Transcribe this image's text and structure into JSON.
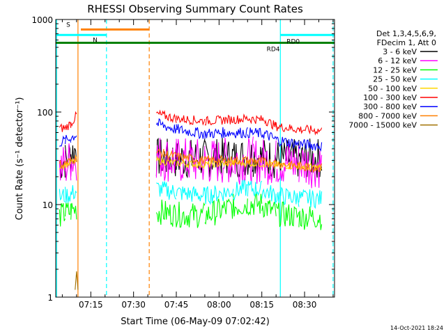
{
  "chart_data": {
    "type": "line",
    "title": "RHESSI Observing Summary Count Rates",
    "xlabel": "Start Time (06-May-09 07:02:42)",
    "ylabel": "Count Rate (s⁻¹ detector⁻¹)",
    "y_scale": "log",
    "ylim": [
      1,
      1000
    ],
    "xlim_minutes_after_0700": [
      2.7,
      100.5
    ],
    "x_ticks": [
      {
        "minute": 15,
        "label": "07:15"
      },
      {
        "minute": 30,
        "label": "07:30"
      },
      {
        "minute": 45,
        "label": "07:45"
      },
      {
        "minute": 60,
        "label": "08:00"
      },
      {
        "minute": 75,
        "label": "08:15"
      },
      {
        "minute": 90,
        "label": "08:30"
      }
    ],
    "y_ticks": [
      {
        "value": 1,
        "label": "1"
      },
      {
        "value": 10,
        "label": "10"
      },
      {
        "value": 100,
        "label": "100"
      },
      {
        "value": 1000,
        "label": "1000"
      }
    ],
    "legend_header": [
      "Det 1,3,4,5,6,9,",
      "FDecim 1, Att 0"
    ],
    "legend_placement": "right",
    "series": [
      {
        "name": "3 - 6 keV",
        "color": "#000000",
        "points": [
          [
            4,
            28
          ],
          [
            6,
            30
          ],
          [
            8,
            35
          ],
          [
            10,
            40
          ],
          [
            38,
            32
          ],
          [
            45,
            31
          ],
          [
            55,
            32
          ],
          [
            65,
            32
          ],
          [
            72,
            33
          ],
          [
            80,
            31
          ],
          [
            88,
            31
          ],
          [
            96,
            32
          ]
        ]
      },
      {
        "name": "6 - 12 keV",
        "color": "#ff00ff",
        "points": [
          [
            4,
            25
          ],
          [
            6,
            26
          ],
          [
            8,
            30
          ],
          [
            10,
            32
          ],
          [
            38,
            33
          ],
          [
            45,
            30
          ],
          [
            55,
            29
          ],
          [
            65,
            30
          ],
          [
            72,
            30
          ],
          [
            80,
            29
          ],
          [
            88,
            28
          ],
          [
            96,
            27
          ]
        ]
      },
      {
        "name": "12 - 25 keV",
        "color": "#00ff00",
        "points": [
          [
            4,
            7.5
          ],
          [
            6,
            8
          ],
          [
            8,
            8.5
          ],
          [
            10,
            9
          ],
          [
            38,
            8.5
          ],
          [
            45,
            7.8
          ],
          [
            55,
            7.6
          ],
          [
            65,
            9.5
          ],
          [
            70,
            10.3
          ],
          [
            75,
            10
          ],
          [
            80,
            8
          ],
          [
            88,
            7.4
          ],
          [
            96,
            7.3
          ]
        ]
      },
      {
        "name": "25 - 50 keV",
        "color": "#00ffff",
        "points": [
          [
            4,
            12
          ],
          [
            6,
            12.5
          ],
          [
            8,
            13
          ],
          [
            10,
            14
          ],
          [
            38,
            15
          ],
          [
            45,
            13.5
          ],
          [
            55,
            12.5
          ],
          [
            65,
            14
          ],
          [
            70,
            15
          ],
          [
            75,
            14.5
          ],
          [
            80,
            12.5
          ],
          [
            88,
            11.8
          ],
          [
            96,
            11.5
          ]
        ]
      },
      {
        "name": "50 - 100 keV",
        "color": "#ffd700",
        "points": [
          [
            4,
            26
          ],
          [
            6,
            27
          ],
          [
            8,
            28
          ],
          [
            10,
            30
          ],
          [
            38,
            30
          ],
          [
            45,
            28
          ],
          [
            55,
            27
          ],
          [
            65,
            28
          ],
          [
            72,
            28
          ],
          [
            80,
            27
          ],
          [
            88,
            26
          ],
          [
            96,
            25
          ]
        ]
      },
      {
        "name": "100 - 300 keV",
        "color": "#ff0000",
        "points": [
          [
            4,
            66
          ],
          [
            6,
            68
          ],
          [
            8,
            75
          ],
          [
            10,
            92
          ],
          [
            38,
            95
          ],
          [
            45,
            85
          ],
          [
            55,
            80
          ],
          [
            62,
            82
          ],
          [
            70,
            85
          ],
          [
            76,
            82
          ],
          [
            80,
            70
          ],
          [
            88,
            65
          ],
          [
            96,
            63
          ]
        ]
      },
      {
        "name": "300 - 800 keV",
        "color": "#0000ff",
        "points": [
          [
            4,
            47
          ],
          [
            6,
            49
          ],
          [
            8,
            52
          ],
          [
            10,
            58
          ],
          [
            38,
            75
          ],
          [
            45,
            65
          ],
          [
            55,
            58
          ],
          [
            62,
            60
          ],
          [
            70,
            60
          ],
          [
            76,
            58
          ],
          [
            80,
            50
          ],
          [
            88,
            45
          ],
          [
            96,
            43
          ]
        ]
      },
      {
        "name": "800 - 7000 keV",
        "color": "#ff8000",
        "points": [
          [
            4,
            27
          ],
          [
            6,
            28
          ],
          [
            8,
            30
          ],
          [
            10,
            32
          ],
          [
            38,
            37
          ],
          [
            45,
            33
          ],
          [
            55,
            30
          ],
          [
            62,
            30
          ],
          [
            70,
            30
          ],
          [
            76,
            29
          ],
          [
            80,
            28
          ],
          [
            88,
            26
          ],
          [
            96,
            25
          ]
        ]
      },
      {
        "name": "7000 - 15000 keV",
        "color": "#a07000",
        "points": [
          [
            9.5,
            1.2
          ],
          [
            10,
            1.9
          ],
          [
            10.5,
            1.2
          ]
        ]
      }
    ],
    "annotations": [
      {
        "label": "S",
        "color": "#ff8000",
        "start": 11.5,
        "end": 35.5,
        "level": 780
      },
      {
        "label": "N",
        "color": "#00ffff",
        "start": 2.7,
        "end": 20.5,
        "level": 680
      },
      {
        "label": "RD4",
        "color": "#008000",
        "start": 2.7,
        "end": 100.5,
        "level": 560
      },
      {
        "label": "RD0",
        "color": "#00ffff",
        "start": 81.5,
        "end": 100.5,
        "level": 680
      }
    ],
    "vertical_markers": [
      {
        "minute": 3,
        "color": "#00ffff",
        "style": "solid"
      },
      {
        "minute": 10.5,
        "color": "#ff8000",
        "style": "solid"
      },
      {
        "minute": 20.5,
        "color": "#00ffff",
        "style": "dashed"
      },
      {
        "minute": 35.5,
        "color": "#ff8000",
        "style": "dashed"
      },
      {
        "minute": 81.5,
        "color": "#00ffff",
        "style": "solid"
      },
      {
        "minute": 100,
        "color": "#00ffff",
        "style": "dashed"
      }
    ],
    "footer_date": "14-Oct-2021 18:24"
  }
}
